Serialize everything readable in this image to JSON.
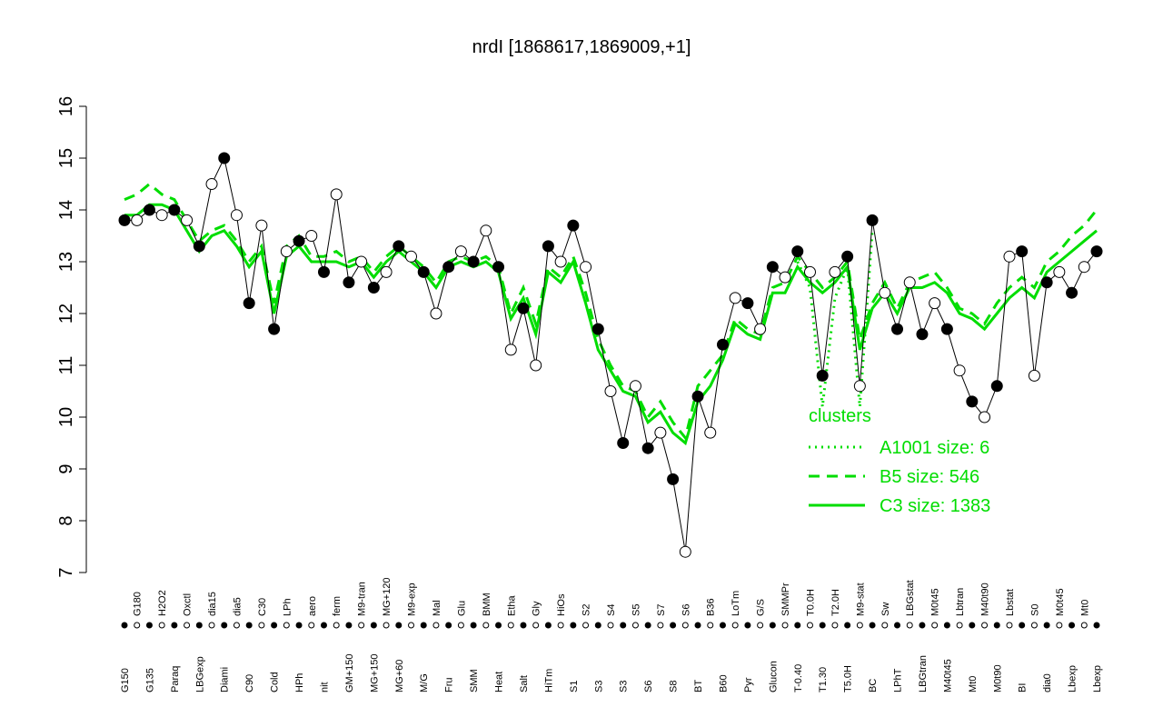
{
  "chart_data": {
    "type": "line",
    "title": "nrdI [1868617,1869009,+1]",
    "categories": [
      "G150",
      "G180",
      "G135",
      "H2O2",
      "Paraq",
      "Oxctl",
      "LBGexp",
      "dia15",
      "Diami",
      "dia5",
      "C90",
      "C30",
      "Cold",
      "LPh",
      "HPh",
      "aero",
      "nit",
      "ferm",
      "GM+150",
      "M9-tran",
      "MG+150",
      "MG+120",
      "MG+60",
      "M9-exp",
      "M/G",
      "Mal",
      "Fru",
      "Glu",
      "SMM",
      "BMM",
      "Heat",
      "Etha",
      "Salt",
      "Gly",
      "HiTm",
      "HiOs",
      "S1",
      "S2",
      "S3",
      "S4",
      "S3",
      "S5",
      "S6",
      "S7",
      "S8",
      "S6",
      "BT",
      "B36",
      "B60",
      "LoTm",
      "Pyr",
      "G/S",
      "Glucon",
      "SMMPr",
      "T-0.40",
      "T0.0H",
      "T1.30",
      "T2.0H",
      "T5.0H",
      "M9-stat",
      "BC",
      "Sw",
      "LPhT",
      "LBGstat",
      "LBGtran",
      "M0t45",
      "M40t45",
      "Lbtran",
      "Mt0",
      "M40t90",
      "M0t90",
      "Lbstat",
      "BI",
      "S0",
      "dia0",
      "M0t45",
      "Lbexp",
      "Mt0",
      "Lbexp"
    ],
    "values": [
      13.8,
      13.8,
      14.0,
      13.9,
      14.0,
      13.8,
      13.3,
      14.5,
      15.0,
      13.9,
      12.2,
      13.7,
      11.7,
      13.2,
      13.4,
      13.5,
      12.8,
      14.3,
      12.6,
      13.0,
      12.5,
      12.8,
      13.3,
      13.1,
      12.8,
      12.0,
      12.9,
      13.2,
      13.0,
      13.6,
      12.9,
      11.3,
      12.1,
      11.0,
      13.3,
      13.0,
      13.7,
      12.9,
      11.7,
      10.5,
      9.5,
      10.6,
      9.4,
      9.7,
      8.8,
      7.4,
      10.4,
      9.7,
      11.4,
      12.3,
      12.2,
      11.7,
      12.9,
      12.7,
      13.2,
      12.8,
      10.8,
      12.8,
      13.1,
      10.6,
      13.8,
      12.4,
      11.7,
      12.6,
      11.6,
      12.2,
      11.7,
      10.9,
      10.3,
      10.0,
      10.6,
      13.1,
      13.2,
      10.8,
      12.6,
      12.8,
      12.4,
      12.9,
      13.2
    ],
    "color": "#000000",
    "ylim": [
      7,
      16
    ],
    "yticks": [
      7,
      8,
      9,
      10,
      11,
      12,
      13,
      14,
      15,
      16
    ],
    "legend_title": "clusters",
    "series": [
      {
        "name": "A1001 size: 6",
        "color": "#00dd00",
        "dash": "dotted",
        "values": [
          null,
          null,
          null,
          null,
          null,
          null,
          null,
          null,
          null,
          null,
          null,
          null,
          null,
          null,
          null,
          null,
          null,
          null,
          null,
          null,
          null,
          null,
          null,
          null,
          null,
          null,
          null,
          null,
          null,
          null,
          null,
          null,
          null,
          null,
          null,
          null,
          null,
          null,
          null,
          null,
          null,
          null,
          null,
          null,
          null,
          null,
          null,
          null,
          null,
          null,
          null,
          null,
          null,
          null,
          13.0,
          12.5,
          10.2,
          12.3,
          12.9,
          10.2,
          13.6,
          null,
          null,
          null,
          null,
          null,
          null,
          null,
          null,
          null,
          null,
          null,
          null,
          null,
          null,
          null,
          null,
          null,
          null
        ]
      },
      {
        "name": "B5 size: 546",
        "color": "#00dd00",
        "dash": "dashed",
        "values": [
          14.2,
          14.3,
          14.5,
          14.3,
          14.2,
          13.8,
          13.4,
          13.6,
          13.7,
          13.4,
          13.0,
          13.3,
          12.2,
          13.3,
          13.5,
          13.1,
          13.1,
          13.2,
          13.0,
          13.1,
          12.8,
          13.1,
          13.3,
          13.1,
          12.9,
          12.6,
          13.0,
          13.1,
          13.0,
          13.1,
          12.9,
          12.0,
          12.5,
          11.8,
          12.9,
          12.7,
          13.1,
          12.4,
          11.5,
          11.0,
          10.6,
          10.5,
          10.0,
          10.3,
          9.9,
          9.6,
          10.6,
          10.9,
          11.2,
          11.9,
          11.7,
          11.6,
          12.5,
          12.6,
          13.1,
          12.8,
          12.5,
          12.7,
          13.0,
          11.5,
          12.2,
          12.6,
          12.1,
          12.6,
          12.7,
          12.8,
          12.5,
          12.1,
          12.0,
          11.8,
          12.2,
          12.5,
          12.7,
          12.5,
          13.0,
          13.2,
          13.5,
          13.7,
          14.0
        ]
      },
      {
        "name": "C3 size: 1383",
        "color": "#00dd00",
        "dash": "solid",
        "values": [
          13.9,
          13.9,
          14.1,
          14.1,
          14.0,
          13.6,
          13.2,
          13.5,
          13.6,
          13.3,
          12.9,
          13.2,
          12.0,
          13.1,
          13.3,
          13.0,
          13.0,
          13.0,
          12.9,
          13.0,
          12.7,
          13.0,
          13.2,
          13.0,
          12.8,
          12.5,
          12.9,
          13.0,
          12.9,
          13.0,
          12.8,
          11.9,
          12.3,
          11.6,
          12.8,
          12.6,
          13.0,
          12.2,
          11.3,
          10.9,
          10.5,
          10.4,
          9.9,
          10.1,
          9.7,
          9.5,
          10.3,
          10.6,
          11.1,
          11.8,
          11.6,
          11.5,
          12.4,
          12.4,
          12.9,
          12.6,
          12.4,
          12.6,
          12.9,
          11.3,
          12.1,
          12.4,
          12.0,
          12.5,
          12.5,
          12.6,
          12.4,
          12.0,
          11.9,
          11.7,
          12.0,
          12.3,
          12.5,
          12.3,
          12.8,
          13.0,
          13.2,
          13.4,
          13.6
        ]
      }
    ]
  }
}
